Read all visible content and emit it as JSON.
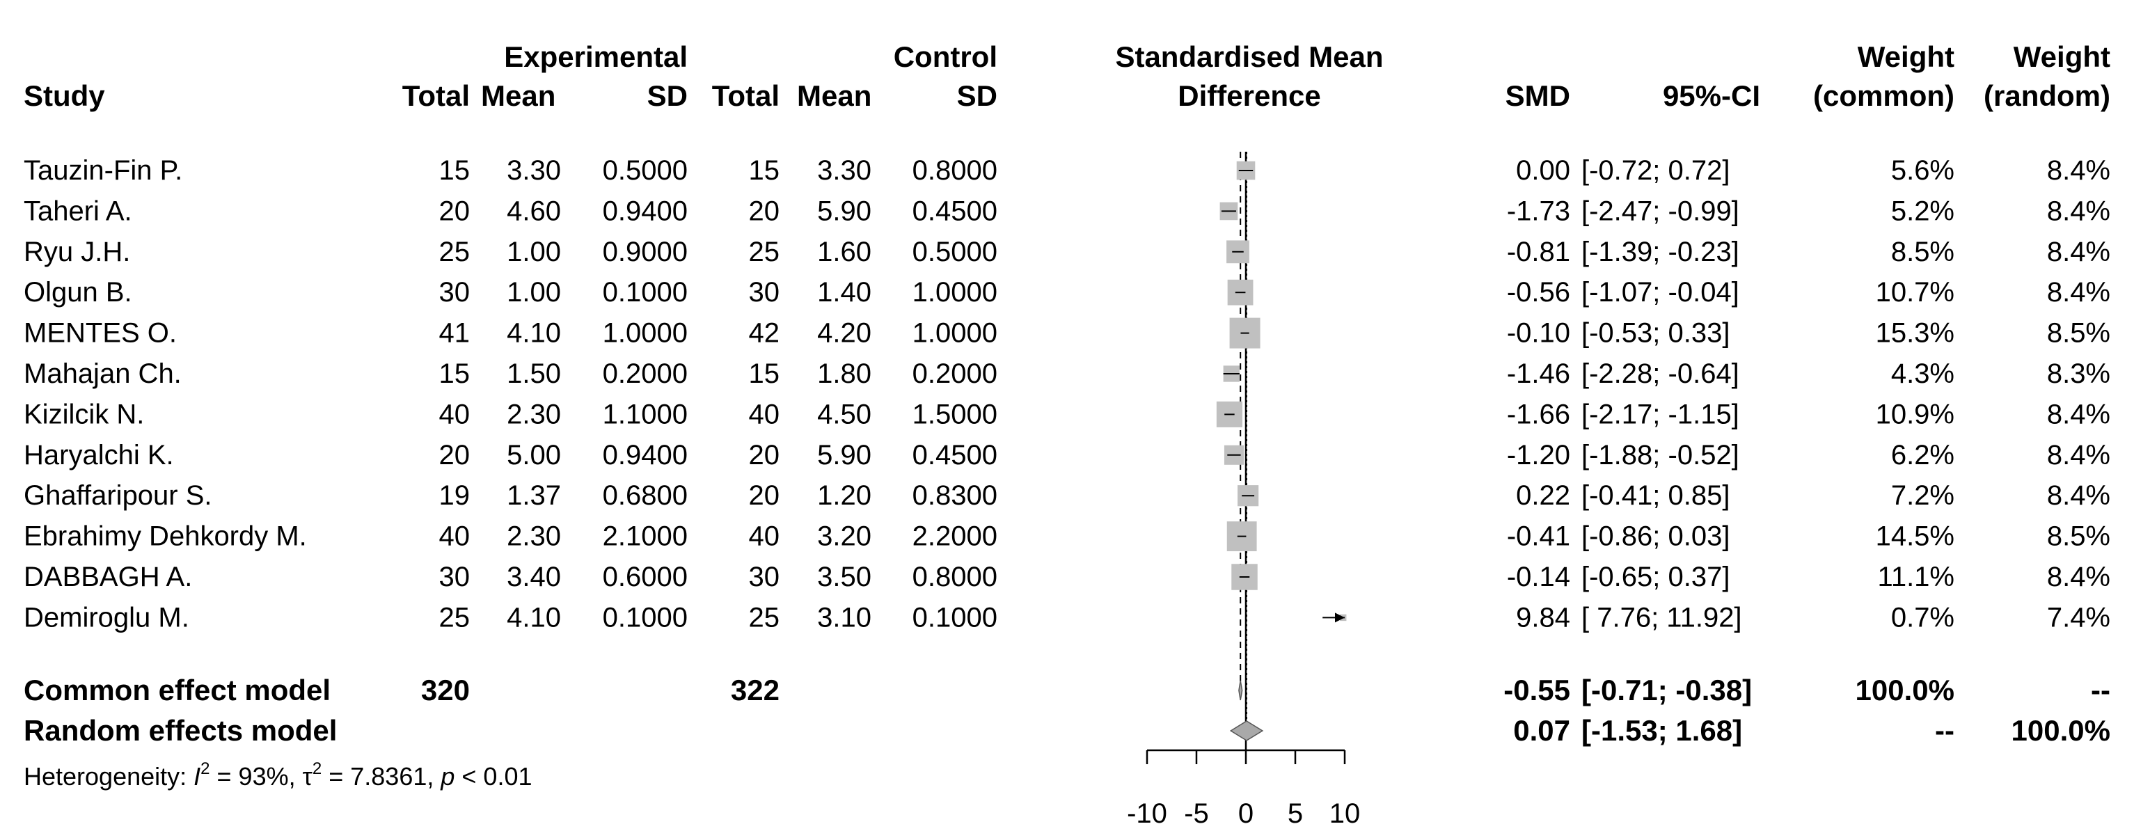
{
  "headers": {
    "study": "Study",
    "experimental": "Experimental",
    "control": "Control",
    "total": "Total",
    "mean": "Mean",
    "sd": "SD",
    "smd_plot_line1": "Standardised Mean",
    "smd_plot_line2": "Difference",
    "smd": "SMD",
    "ci": "95%-CI",
    "weight": "Weight",
    "weight_common": "(common)",
    "weight_random": "(random)"
  },
  "studies": [
    {
      "name": "Tauzin-Fin P.",
      "e_total": "15",
      "e_mean": "3.30",
      "e_sd": "0.5000",
      "c_total": "15",
      "c_mean": "3.30",
      "c_sd": "0.8000",
      "smd_text": "0.00",
      "ci_text": "[-0.72;  0.72]",
      "w_common": "5.6%",
      "w_random": "8.4%"
    },
    {
      "name": "Taheri A.",
      "e_total": "20",
      "e_mean": "4.60",
      "e_sd": "0.9400",
      "c_total": "20",
      "c_mean": "5.90",
      "c_sd": "0.4500",
      "smd_text": "-1.73",
      "ci_text": "[-2.47; -0.99]",
      "w_common": "5.2%",
      "w_random": "8.4%"
    },
    {
      "name": "Ryu J.H.",
      "e_total": "25",
      "e_mean": "1.00",
      "e_sd": "0.9000",
      "c_total": "25",
      "c_mean": "1.60",
      "c_sd": "0.5000",
      "smd_text": "-0.81",
      "ci_text": "[-1.39; -0.23]",
      "w_common": "8.5%",
      "w_random": "8.4%"
    },
    {
      "name": "Olgun  B.",
      "e_total": "30",
      "e_mean": "1.00",
      "e_sd": "0.1000",
      "c_total": "30",
      "c_mean": "1.40",
      "c_sd": "1.0000",
      "smd_text": "-0.56",
      "ci_text": "[-1.07; -0.04]",
      "w_common": "10.7%",
      "w_random": "8.4%"
    },
    {
      "name": "MENTES O.",
      "e_total": "41",
      "e_mean": "4.10",
      "e_sd": "1.0000",
      "c_total": "42",
      "c_mean": "4.20",
      "c_sd": "1.0000",
      "smd_text": "-0.10",
      "ci_text": "[-0.53;  0.33]",
      "w_common": "15.3%",
      "w_random": "8.5%"
    },
    {
      "name": "Mahajan Ch.",
      "e_total": "15",
      "e_mean": "1.50",
      "e_sd": "0.2000",
      "c_total": "15",
      "c_mean": "1.80",
      "c_sd": "0.2000",
      "smd_text": "-1.46",
      "ci_text": "[-2.28; -0.64]",
      "w_common": "4.3%",
      "w_random": "8.3%"
    },
    {
      "name": "Kizilcik N.",
      "e_total": "40",
      "e_mean": "2.30",
      "e_sd": "1.1000",
      "c_total": "40",
      "c_mean": "4.50",
      "c_sd": "1.5000",
      "smd_text": "-1.66",
      "ci_text": "[-2.17; -1.15]",
      "w_common": "10.9%",
      "w_random": "8.4%"
    },
    {
      "name": "Haryalchi K.",
      "e_total": "20",
      "e_mean": "5.00",
      "e_sd": "0.9400",
      "c_total": "20",
      "c_mean": "5.90",
      "c_sd": "0.4500",
      "smd_text": "-1.20",
      "ci_text": "[-1.88; -0.52]",
      "w_common": "6.2%",
      "w_random": "8.4%"
    },
    {
      "name": "Ghaffaripour S.",
      "e_total": "19",
      "e_mean": "1.37",
      "e_sd": "0.6800",
      "c_total": "20",
      "c_mean": "1.20",
      "c_sd": "0.8300",
      "smd_text": "0.22",
      "ci_text": "[-0.41;  0.85]",
      "w_common": "7.2%",
      "w_random": "8.4%"
    },
    {
      "name": "Ebrahimy Dehkordy M.",
      "e_total": "40",
      "e_mean": "2.30",
      "e_sd": "2.1000",
      "c_total": "40",
      "c_mean": "3.20",
      "c_sd": "2.2000",
      "smd_text": "-0.41",
      "ci_text": "[-0.86;  0.03]",
      "w_common": "14.5%",
      "w_random": "8.5%"
    },
    {
      "name": "DABBAGH A.",
      "e_total": "30",
      "e_mean": "3.40",
      "e_sd": "0.6000",
      "c_total": "30",
      "c_mean": "3.50",
      "c_sd": "0.8000",
      "smd_text": "-0.14",
      "ci_text": "[-0.65;  0.37]",
      "w_common": "11.1%",
      "w_random": "8.4%"
    },
    {
      "name": "Demiroglu M.",
      "e_total": "25",
      "e_mean": "4.10",
      "e_sd": "0.1000",
      "c_total": "25",
      "c_mean": "3.10",
      "c_sd": "0.1000",
      "smd_text": "9.84",
      "ci_text": "[ 7.76; 11.92]",
      "w_common": "0.7%",
      "w_random": "7.4%"
    }
  ],
  "models": [
    {
      "name": "Common effect model",
      "e_total": "320",
      "c_total": "322",
      "smd_text": "-0.55",
      "ci_text": "[-0.71; -0.38]",
      "w_common": "100.0%",
      "w_random": "--"
    },
    {
      "name": "Random effects model",
      "e_total": "",
      "c_total": "",
      "smd_text": "0.07",
      "ci_text": "[-1.53;  1.68]",
      "w_common": "--",
      "w_random": "100.0%"
    }
  ],
  "heterogeneity": {
    "prefix": "Heterogeneity: ",
    "i2_symbol": "I",
    "i2_sup": "2",
    "i2_value": " = 93%, ",
    "tau_symbol": "τ",
    "tau_sup": "2",
    "tau_value": " = 7.8361, ",
    "p_symbol": "p",
    "p_value": " < 0.01"
  },
  "chart_data": {
    "type": "forest",
    "xlim": [
      -10,
      10
    ],
    "x_ticks": [
      -10,
      -5,
      0,
      5,
      10
    ],
    "x_tick_labels": [
      "-10",
      "-5",
      "0",
      "5",
      "10"
    ],
    "null_value": 0,
    "square_color": "#c0c0c0",
    "diamond_color": "#a9a9a9",
    "studies": [
      {
        "smd": 0.0,
        "lower": -0.72,
        "upper": 0.72,
        "weight_common": 5.6
      },
      {
        "smd": -1.73,
        "lower": -2.47,
        "upper": -0.99,
        "weight_common": 5.2
      },
      {
        "smd": -0.81,
        "lower": -1.39,
        "upper": -0.23,
        "weight_common": 8.5
      },
      {
        "smd": -0.56,
        "lower": -1.07,
        "upper": -0.04,
        "weight_common": 10.7
      },
      {
        "smd": -0.1,
        "lower": -0.53,
        "upper": 0.33,
        "weight_common": 15.3
      },
      {
        "smd": -1.46,
        "lower": -2.28,
        "upper": -0.64,
        "weight_common": 4.3
      },
      {
        "smd": -1.66,
        "lower": -2.17,
        "upper": -1.15,
        "weight_common": 10.9
      },
      {
        "smd": -1.2,
        "lower": -1.88,
        "upper": -0.52,
        "weight_common": 6.2
      },
      {
        "smd": 0.22,
        "lower": -0.41,
        "upper": 0.85,
        "weight_common": 7.2
      },
      {
        "smd": -0.41,
        "lower": -0.86,
        "upper": 0.03,
        "weight_common": 14.5
      },
      {
        "smd": -0.14,
        "lower": -0.65,
        "upper": 0.37,
        "weight_common": 11.1
      },
      {
        "smd": 9.84,
        "lower": 7.76,
        "upper": 11.92,
        "weight_common": 0.7
      }
    ],
    "common_effect": {
      "smd": -0.55,
      "lower": -0.71,
      "upper": -0.38
    },
    "random_effects": {
      "smd": 0.07,
      "lower": -1.53,
      "upper": 1.68
    }
  }
}
